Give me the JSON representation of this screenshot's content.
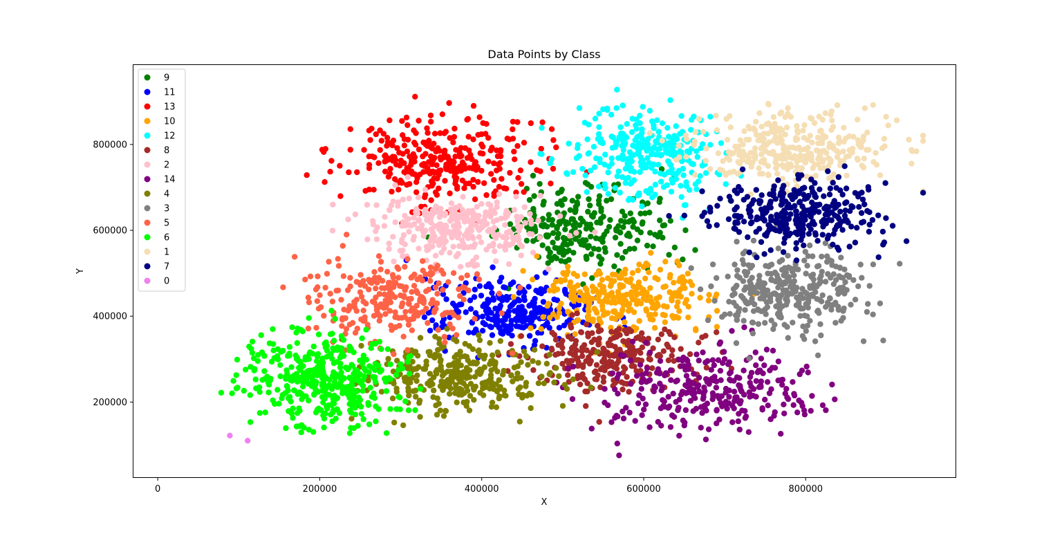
{
  "chart_data": {
    "type": "scatter",
    "title": "Data Points by Class",
    "xlabel": "X",
    "ylabel": "Y",
    "xlim": [
      -30000,
      985000
    ],
    "ylim": [
      25000,
      985000
    ],
    "xticks": [
      0,
      200000,
      400000,
      600000,
      800000
    ],
    "yticks": [
      200000,
      400000,
      600000,
      800000
    ],
    "xtick_labels": [
      "0",
      "200000",
      "400000",
      "600000",
      "800000"
    ],
    "ytick_labels": [
      "200000",
      "400000",
      "600000",
      "800000"
    ],
    "grid": false,
    "legend_position": "upper-left",
    "series": [
      {
        "name": "9",
        "color": "#008000",
        "center": [
          530000,
          605000
        ],
        "spread": [
          50000,
          52000
        ],
        "count": 260
      },
      {
        "name": "11",
        "color": "#0000ff",
        "center": [
          440000,
          410000
        ],
        "spread": [
          45000,
          38000
        ],
        "count": 280
      },
      {
        "name": "13",
        "color": "#ff0000",
        "center": [
          350000,
          765000
        ],
        "spread": [
          62000,
          52000
        ],
        "count": 320
      },
      {
        "name": "10",
        "color": "#ffa500",
        "center": [
          575000,
          440000
        ],
        "spread": [
          48000,
          44000
        ],
        "count": 300
      },
      {
        "name": "12",
        "color": "#00ffff",
        "center": [
          605000,
          780000
        ],
        "spread": [
          48000,
          50000
        ],
        "count": 310
      },
      {
        "name": "8",
        "color": "#a52a2a",
        "center": [
          560000,
          305000
        ],
        "spread": [
          55000,
          42000
        ],
        "count": 260
      },
      {
        "name": "2",
        "color": "#ffc0cb",
        "center": [
          370000,
          605000
        ],
        "spread": [
          52000,
          38000
        ],
        "count": 320
      },
      {
        "name": "14",
        "color": "#800080",
        "center": [
          680000,
          225000
        ],
        "spread": [
          70000,
          48000
        ],
        "count": 300
      },
      {
        "name": "4",
        "color": "#808000",
        "center": [
          375000,
          260000
        ],
        "spread": [
          55000,
          42000
        ],
        "count": 330
      },
      {
        "name": "3",
        "color": "#808080",
        "center": [
          775000,
          460000
        ],
        "spread": [
          50000,
          50000
        ],
        "count": 330
      },
      {
        "name": "5",
        "color": "#ff6347",
        "center": [
          290000,
          440000
        ],
        "spread": [
          55000,
          45000
        ],
        "count": 260
      },
      {
        "name": "6",
        "color": "#00ff00",
        "center": [
          205000,
          255000
        ],
        "spread": [
          50000,
          55000
        ],
        "count": 420
      },
      {
        "name": "1",
        "color": "#f5deb3",
        "center": [
          780000,
          790000
        ],
        "spread": [
          58000,
          42000
        ],
        "count": 330
      },
      {
        "name": "7",
        "color": "#000080",
        "center": [
          790000,
          640000
        ],
        "spread": [
          55000,
          40000
        ],
        "count": 330
      },
      {
        "name": "0",
        "color": "#ee82ee",
        "points": [
          [
            89000,
            122000
          ],
          [
            111000,
            110000
          ]
        ]
      }
    ]
  }
}
